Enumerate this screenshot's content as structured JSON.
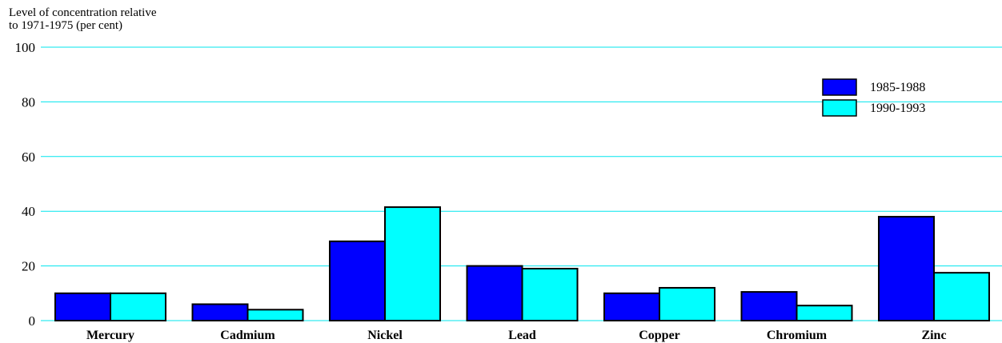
{
  "chart_data": {
    "type": "bar",
    "title": "",
    "ylabel_lines": [
      "Level of concentration relative",
      "to 1971-1975 (per cent)"
    ],
    "xlabel": "",
    "categories": [
      "Mercury",
      "Cadmium",
      "Nickel",
      "Lead",
      "Copper",
      "Chromium",
      "Zinc"
    ],
    "series": [
      {
        "name": "1985-1988",
        "color": "#0000ff",
        "values": [
          10,
          6,
          29,
          20,
          10,
          10.5,
          38
        ]
      },
      {
        "name": "1990-1993",
        "color": "#00ffff",
        "values": [
          10,
          4,
          41.5,
          19,
          12,
          5.5,
          17.5
        ]
      }
    ],
    "ylim": [
      0,
      100
    ],
    "yticks": [
      0,
      20,
      40,
      60,
      80,
      100
    ],
    "grid": true,
    "grid_color": "#00e5ee",
    "legend_position": "top-right"
  }
}
